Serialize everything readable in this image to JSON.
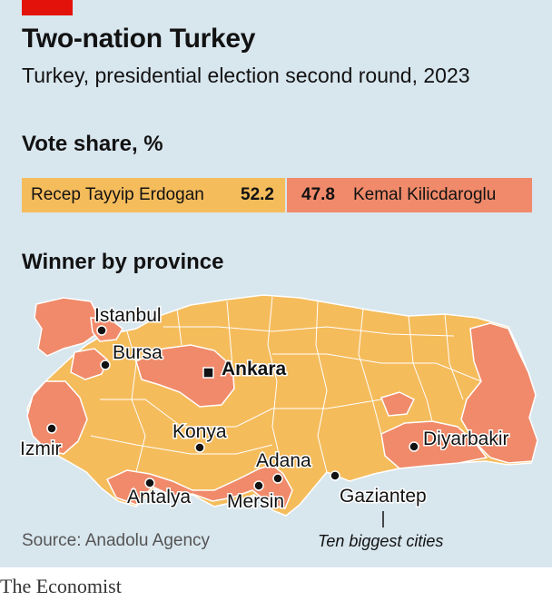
{
  "header": {
    "title": "Two-nation Turkey",
    "subtitle": "Turkey, presidential election second round, 2023"
  },
  "vote_share": {
    "heading": "Vote share, %",
    "candidates": [
      {
        "name": "Recep Tayyip Erdogan",
        "value": "52.2",
        "color": "#f5bc5c"
      },
      {
        "name": "Kemal Kilicdaroglu",
        "value": "47.8",
        "color": "#f08a6a"
      }
    ]
  },
  "map": {
    "heading": "Winner by province",
    "cities": [
      {
        "name": "Istanbul",
        "marker": "circle"
      },
      {
        "name": "Bursa",
        "marker": "circle"
      },
      {
        "name": "Ankara",
        "marker": "square"
      },
      {
        "name": "Izmir",
        "marker": "circle"
      },
      {
        "name": "Konya",
        "marker": "circle"
      },
      {
        "name": "Adana",
        "marker": "circle"
      },
      {
        "name": "Antalya",
        "marker": "circle"
      },
      {
        "name": "Mersin",
        "marker": "circle"
      },
      {
        "name": "Gaziantep",
        "marker": "circle"
      },
      {
        "name": "Diyarbakir",
        "marker": "circle"
      }
    ],
    "legend_note": "Ten biggest cities"
  },
  "footer": {
    "source": "Source: Anadolu Agency",
    "brand": "The Economist"
  }
}
